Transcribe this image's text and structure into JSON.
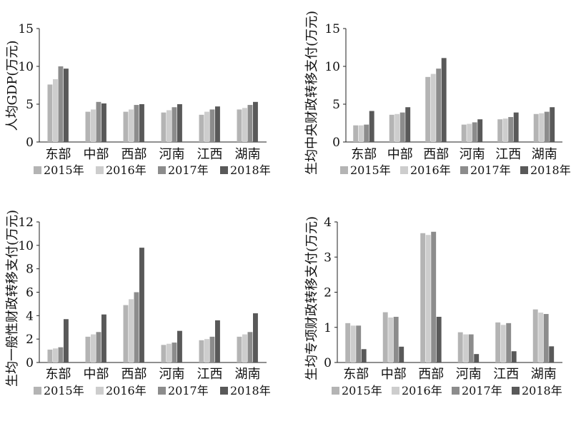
{
  "colors": {
    "s2015": "#b4b4b4",
    "s2016": "#cdcdcd",
    "s2017": "#8c8c8c",
    "s2018": "#595959",
    "axis": "#222222"
  },
  "chart_data": [
    {
      "type": "bar",
      "title": "",
      "ylabel": "人均GDP(万元)",
      "xlabel": "",
      "categories": [
        "东部",
        "中部",
        "西部",
        "河南",
        "江西",
        "湖南"
      ],
      "ylim": [
        0,
        15
      ],
      "yticks": [
        0,
        5,
        10,
        15
      ],
      "grid": false,
      "legend": "bottom",
      "series": [
        {
          "name": "2015年",
          "values": [
            7.6,
            4.0,
            4.0,
            3.9,
            3.6,
            4.3
          ]
        },
        {
          "name": "2016年",
          "values": [
            8.3,
            4.3,
            4.3,
            4.2,
            4.0,
            4.5
          ]
        },
        {
          "name": "2017年",
          "values": [
            10.0,
            5.3,
            4.9,
            4.6,
            4.3,
            4.9
          ]
        },
        {
          "name": "2018年",
          "values": [
            9.7,
            5.1,
            5.0,
            5.0,
            4.7,
            5.3
          ]
        }
      ]
    },
    {
      "type": "bar",
      "title": "",
      "ylabel": "生均中央财政转移支付(万元)",
      "xlabel": "",
      "categories": [
        "东部",
        "中部",
        "西部",
        "河南",
        "江西",
        "湖南"
      ],
      "ylim": [
        0,
        15
      ],
      "yticks": [
        0,
        5,
        10,
        15
      ],
      "grid": false,
      "legend": "bottom",
      "series": [
        {
          "name": "2015年",
          "values": [
            2.2,
            3.6,
            8.6,
            2.3,
            3.0,
            3.7
          ]
        },
        {
          "name": "2016年",
          "values": [
            2.2,
            3.7,
            9.0,
            2.4,
            3.1,
            3.8
          ]
        },
        {
          "name": "2017年",
          "values": [
            2.3,
            3.9,
            9.7,
            2.6,
            3.3,
            4.0
          ]
        },
        {
          "name": "2018年",
          "values": [
            4.1,
            4.6,
            11.1,
            3.0,
            3.9,
            4.6
          ]
        }
      ]
    },
    {
      "type": "bar",
      "title": "",
      "ylabel": "生均一般性财政转移支付(万元)",
      "xlabel": "",
      "categories": [
        "东部",
        "中部",
        "西部",
        "河南",
        "江西",
        "湖南"
      ],
      "ylim": [
        0,
        12
      ],
      "yticks": [
        0,
        2,
        4,
        6,
        8,
        10,
        12
      ],
      "grid": false,
      "legend": "bottom",
      "series": [
        {
          "name": "2015年",
          "values": [
            1.1,
            2.2,
            4.9,
            1.5,
            1.9,
            2.2
          ]
        },
        {
          "name": "2016年",
          "values": [
            1.2,
            2.4,
            5.4,
            1.6,
            2.0,
            2.4
          ]
        },
        {
          "name": "2017年",
          "values": [
            1.3,
            2.6,
            6.0,
            1.7,
            2.2,
            2.6
          ]
        },
        {
          "name": "2018年",
          "values": [
            3.7,
            4.1,
            9.8,
            2.7,
            3.6,
            4.2
          ]
        }
      ]
    },
    {
      "type": "bar",
      "title": "",
      "ylabel": "生均专项财政转移支付(万元)",
      "xlabel": "",
      "categories": [
        "东部",
        "中部",
        "西部",
        "河南",
        "江西",
        "湖南"
      ],
      "ylim": [
        0,
        4
      ],
      "yticks": [
        0,
        1,
        2,
        3,
        4
      ],
      "grid": false,
      "legend": "bottom",
      "series": [
        {
          "name": "2015年",
          "values": [
            1.12,
            1.43,
            3.68,
            0.86,
            1.14,
            1.51
          ]
        },
        {
          "name": "2016年",
          "values": [
            1.05,
            1.28,
            3.63,
            0.8,
            1.07,
            1.42
          ]
        },
        {
          "name": "2017年",
          "values": [
            1.05,
            1.3,
            3.72,
            0.8,
            1.12,
            1.38
          ]
        },
        {
          "name": "2018年",
          "values": [
            0.38,
            0.45,
            1.3,
            0.24,
            0.32,
            0.46
          ]
        }
      ]
    }
  ]
}
